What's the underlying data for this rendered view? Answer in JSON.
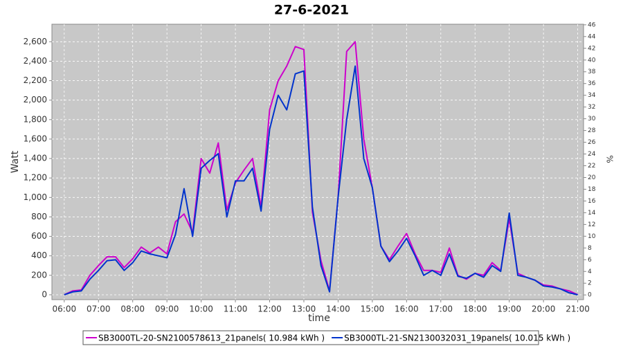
{
  "chart_data": {
    "type": "line",
    "title": "27-6-2021",
    "xlabel": "time",
    "ylabel": "Watt",
    "y2label": "%",
    "x": [
      6.0,
      6.25,
      6.5,
      6.75,
      7.0,
      7.25,
      7.5,
      7.75,
      8.0,
      8.25,
      8.5,
      8.75,
      9.0,
      9.25,
      9.5,
      9.75,
      10.0,
      10.25,
      10.5,
      10.75,
      11.0,
      11.25,
      11.5,
      11.75,
      12.0,
      12.25,
      12.5,
      12.75,
      13.0,
      13.25,
      13.5,
      13.75,
      14.0,
      14.25,
      14.5,
      14.75,
      15.0,
      15.25,
      15.5,
      15.75,
      16.0,
      16.25,
      16.5,
      16.75,
      17.0,
      17.25,
      17.5,
      17.75,
      18.0,
      18.25,
      18.5,
      18.75,
      19.0,
      19.25,
      19.5,
      19.75,
      20.0,
      20.25,
      20.5,
      20.75,
      21.0
    ],
    "series": [
      {
        "name": "SB3000TL-20-SN2100578613_21panels( 10.984 kWh )",
        "color": "#cc00cc",
        "values": [
          0,
          40,
          50,
          200,
          300,
          390,
          390,
          280,
          370,
          490,
          430,
          490,
          420,
          750,
          830,
          640,
          1400,
          1250,
          1560,
          870,
          1150,
          1280,
          1400,
          900,
          1900,
          2200,
          2350,
          2550,
          2520,
          850,
          350,
          40,
          1000,
          2500,
          2600,
          1600,
          1100,
          500,
          360,
          500,
          630,
          420,
          250,
          250,
          230,
          480,
          200,
          160,
          220,
          200,
          330,
          250,
          780,
          220,
          180,
          150,
          100,
          90,
          60,
          40,
          0
        ]
      },
      {
        "name": "SB3000TL-21-SN2130032031_19panels( 10.015 kWh )",
        "color": "#0033cc",
        "values": [
          0,
          30,
          40,
          160,
          250,
          350,
          360,
          250,
          330,
          450,
          420,
          400,
          380,
          620,
          1090,
          600,
          1300,
          1380,
          1450,
          800,
          1170,
          1170,
          1300,
          860,
          1700,
          2050,
          1900,
          2270,
          2300,
          900,
          300,
          30,
          1000,
          1800,
          2350,
          1400,
          1100,
          500,
          340,
          450,
          580,
          400,
          200,
          250,
          200,
          420,
          190,
          170,
          220,
          180,
          300,
          240,
          840,
          200,
          180,
          150,
          90,
          80,
          60,
          20,
          0
        ]
      }
    ],
    "xlim": [
      5.64,
      21.17
    ],
    "xticks": [
      {
        "value": 6,
        "label": "06:00"
      },
      {
        "value": 7,
        "label": "07:00"
      },
      {
        "value": 8,
        "label": "08:00"
      },
      {
        "value": 9,
        "label": "09:00"
      },
      {
        "value": 10,
        "label": "10:00"
      },
      {
        "value": 11,
        "label": "11:00"
      },
      {
        "value": 12,
        "label": "12:00"
      },
      {
        "value": 13,
        "label": "13:00"
      },
      {
        "value": 14,
        "label": "14:00"
      },
      {
        "value": 15,
        "label": "15:00"
      },
      {
        "value": 16,
        "label": "16:00"
      },
      {
        "value": 17,
        "label": "17:00"
      },
      {
        "value": 18,
        "label": "18:00"
      },
      {
        "value": 19,
        "label": "19:00"
      },
      {
        "value": 20,
        "label": "20:00"
      },
      {
        "value": 21,
        "label": "21:00"
      }
    ],
    "ylim": [
      -50,
      2780
    ],
    "yticks": [
      0,
      200,
      400,
      600,
      800,
      {
        "value": 1000,
        "label": "1,000"
      },
      {
        "value": 1200,
        "label": "1,200"
      },
      {
        "value": 1400,
        "label": "1,400"
      },
      {
        "value": 1600,
        "label": "1,600"
      },
      {
        "value": 1800,
        "label": "1,800"
      },
      {
        "value": 2000,
        "label": "2,000"
      },
      {
        "value": 2200,
        "label": "2,200"
      },
      {
        "value": 2400,
        "label": "2,400"
      },
      {
        "value": 2600,
        "label": "2,600"
      }
    ],
    "y2lim": [
      -0.8,
      46.1
    ],
    "y2ticks": [
      0,
      2,
      4,
      6,
      8,
      10,
      12,
      14,
      16,
      18,
      20,
      22,
      24,
      26,
      28,
      30,
      32,
      34,
      36,
      38,
      40,
      42,
      44,
      46
    ],
    "grid": true,
    "legend": "bottom"
  }
}
